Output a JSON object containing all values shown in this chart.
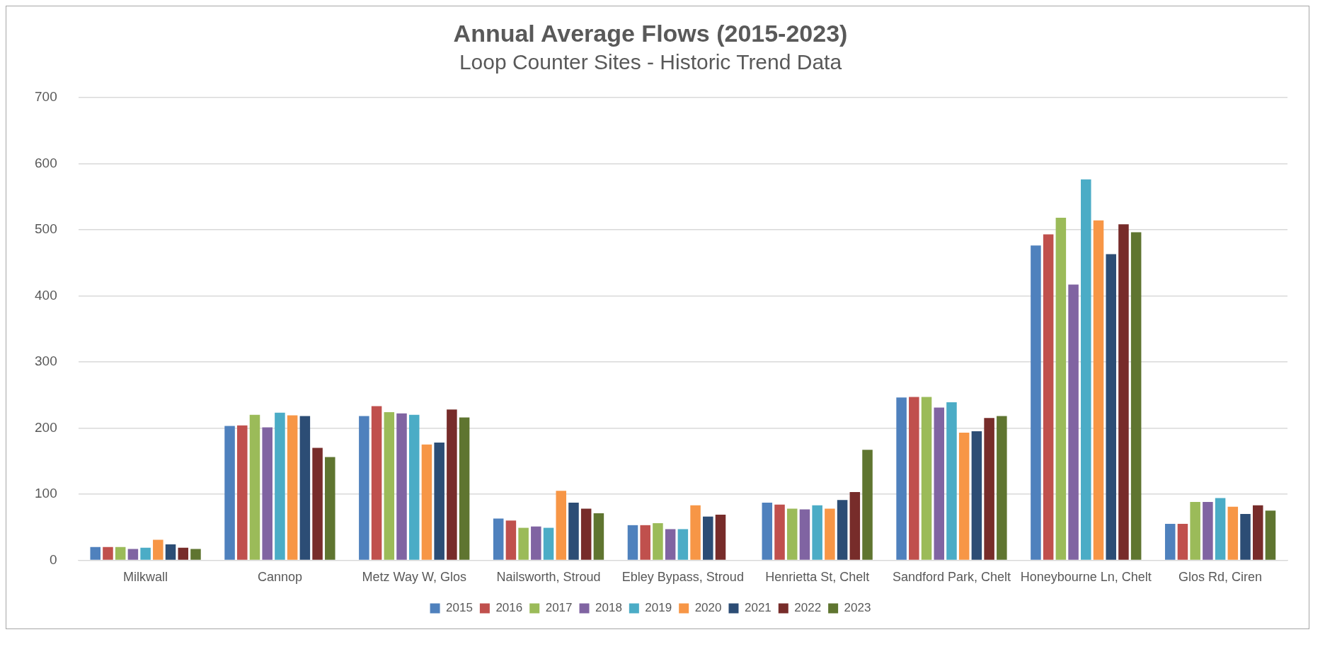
{
  "chart_data": {
    "type": "bar",
    "title": "Annual Average Flows (2015-2023)",
    "subtitle": "Loop Counter Sites - Historic Trend Data",
    "categories": [
      "Milkwall",
      "Cannop",
      "Metz Way W, Glos",
      "Nailsworth, Stroud",
      "Ebley Bypass, Stroud",
      "Henrietta St, Chelt",
      "Sandford Park, Chelt",
      "Honeybourne Ln, Chelt",
      "Glos Rd, Ciren"
    ],
    "series": [
      {
        "name": "2015",
        "color": "#4f81bd",
        "values": [
          20,
          203,
          218,
          63,
          53,
          87,
          246,
          476,
          55
        ]
      },
      {
        "name": "2016",
        "color": "#c0504d",
        "values": [
          20,
          204,
          233,
          60,
          53,
          84,
          247,
          493,
          55
        ]
      },
      {
        "name": "2017",
        "color": "#9bbb59",
        "values": [
          20,
          220,
          224,
          49,
          56,
          78,
          247,
          518,
          88
        ]
      },
      {
        "name": "2018",
        "color": "#8064a2",
        "values": [
          17,
          201,
          222,
          51,
          47,
          77,
          231,
          417,
          88
        ]
      },
      {
        "name": "2019",
        "color": "#4bacc6",
        "values": [
          19,
          223,
          220,
          49,
          47,
          83,
          239,
          576,
          94
        ]
      },
      {
        "name": "2020",
        "color": "#f79646",
        "values": [
          31,
          219,
          175,
          105,
          83,
          78,
          193,
          514,
          81
        ]
      },
      {
        "name": "2021",
        "color": "#2c4d75",
        "values": [
          24,
          218,
          178,
          87,
          66,
          91,
          195,
          463,
          70
        ]
      },
      {
        "name": "2022",
        "color": "#772c2a",
        "values": [
          19,
          170,
          228,
          78,
          69,
          103,
          215,
          508,
          83
        ]
      },
      {
        "name": "2023",
        "color": "#5f7530",
        "values": [
          17,
          156,
          216,
          71,
          null,
          167,
          218,
          496,
          75
        ]
      }
    ],
    "ylim": [
      0,
      700
    ],
    "yticks": [
      0,
      100,
      200,
      300,
      400,
      500,
      600,
      700
    ],
    "grid": "y",
    "legend": "bottom"
  }
}
